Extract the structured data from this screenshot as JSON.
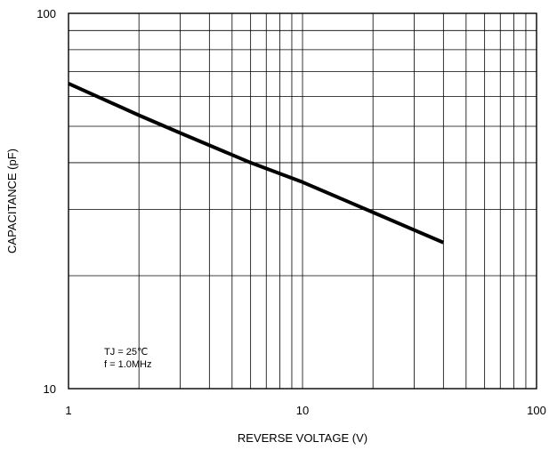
{
  "chart_data": {
    "type": "line",
    "title": "",
    "xlabel": "REVERSE VOLTAGE (V)",
    "ylabel": "CAPACITANCE (pF)",
    "xscale": "log",
    "yscale": "log",
    "xlim": [
      1,
      100
    ],
    "ylim": [
      10,
      100
    ],
    "x_tick_labels": [
      "1",
      "10",
      "100"
    ],
    "y_tick_labels": [
      "10",
      "100"
    ],
    "grid": true,
    "annotations": [
      "TJ = 25℃",
      "f = 1.0MHz"
    ],
    "series": [
      {
        "x": [
          1,
          2,
          3,
          6,
          10,
          20,
          40
        ],
        "y": [
          65,
          53.5,
          48,
          40,
          35.5,
          29.5,
          24.5
        ]
      }
    ],
    "line_color": "#000000"
  }
}
